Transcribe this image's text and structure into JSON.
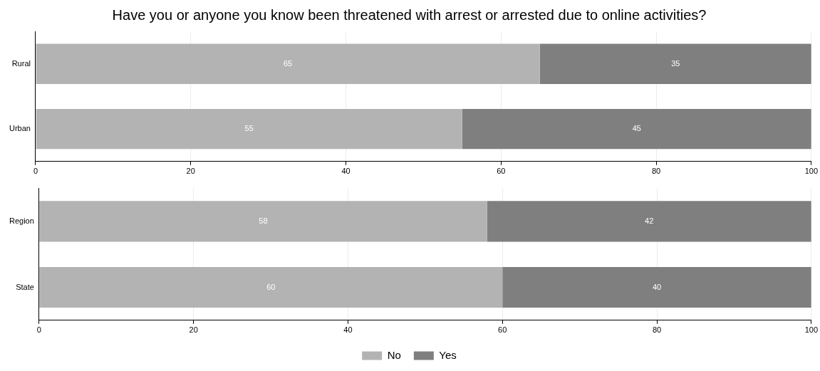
{
  "chart_data": [
    {
      "type": "bar",
      "title": "Have you or anyone you know been threatened with arrest or arrested due to online activities?",
      "orientation": "horizontal",
      "stacked": true,
      "categories": [
        "Rural",
        "Urban"
      ],
      "series": [
        {
          "color": "#b3b3b3",
          "values": [
            65,
            55
          ]
        },
        {
          "color": "#7f7f7f",
          "values": [
            35,
            45
          ]
        }
      ],
      "xlim": [
        0,
        100
      ],
      "xticks": [
        0,
        20,
        40,
        60,
        80,
        100
      ],
      "grid": "x",
      "legend": false,
      "data_labels": true
    },
    {
      "type": "bar",
      "orientation": "horizontal",
      "stacked": true,
      "categories": [
        "Region",
        "State"
      ],
      "series": [
        {
          "name": "No",
          "color": "#b3b3b3",
          "values": [
            58,
            60
          ]
        },
        {
          "name": "Yes",
          "color": "#7f7f7f",
          "values": [
            42,
            40
          ]
        }
      ],
      "xlim": [
        0,
        100
      ],
      "xticks": [
        0,
        20,
        40,
        60,
        80,
        100
      ],
      "grid": "x",
      "legend": "bottom",
      "data_labels": true
    }
  ]
}
